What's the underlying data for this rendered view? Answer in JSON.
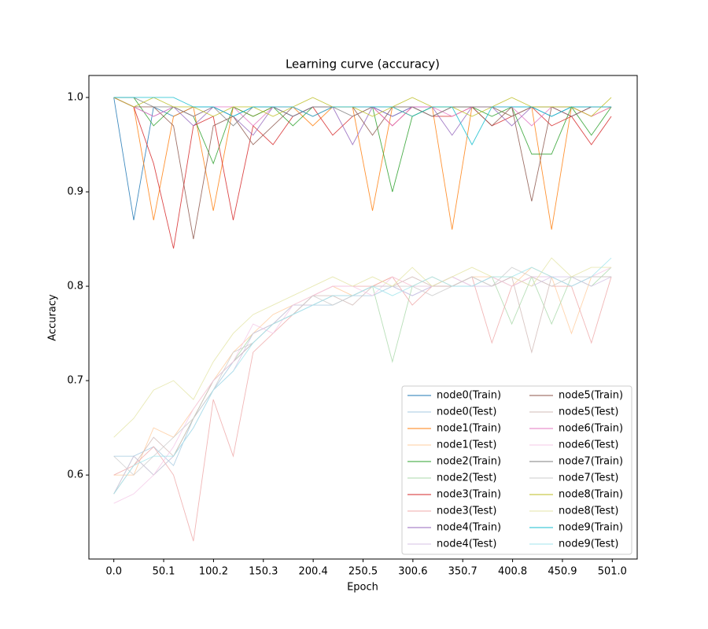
{
  "chart_data": {
    "type": "line",
    "title": "Learning curve (accuracy)",
    "x_label": "Epoch",
    "y_label": "Accuracy",
    "x": [
      0,
      20,
      40,
      60,
      80,
      100,
      120,
      140,
      160,
      180,
      200,
      220,
      240,
      260,
      280,
      300,
      320,
      340,
      360,
      380,
      400,
      420,
      440,
      460,
      480,
      500
    ],
    "xlim": [
      -25.05,
      526.05
    ],
    "ylim": [
      0.511,
      1.0233
    ],
    "xticks": [
      {
        "value": 0,
        "label": "0.0"
      },
      50.1,
      100.2,
      150.3,
      200.4,
      250.5,
      300.6,
      350.7,
      400.8,
      450.9,
      {
        "value": 501,
        "label": "501.0"
      }
    ],
    "yticks": [
      0.6,
      0.7,
      0.8,
      0.9,
      {
        "value": 1,
        "label": "1.0"
      }
    ],
    "legend_position": "lower right",
    "legend_columns": 2,
    "series": [
      {
        "name": "node0(Train)",
        "color": "#1f77b4",
        "values": [
          1.0,
          0.87,
          0.99,
          0.98,
          0.99,
          0.99,
          0.98,
          0.99,
          0.99,
          0.98,
          0.99,
          0.99,
          0.99,
          0.99,
          0.98,
          0.99,
          0.99,
          0.99,
          0.99,
          0.99,
          0.99,
          0.99,
          0.98,
          0.99,
          0.99,
          0.99
        ]
      },
      {
        "name": "node0(Test)",
        "color": "#a5c9e1",
        "values": [
          0.62,
          0.62,
          0.63,
          0.61,
          0.66,
          0.69,
          0.72,
          0.74,
          0.76,
          0.77,
          0.78,
          0.78,
          0.79,
          0.79,
          0.8,
          0.79,
          0.8,
          0.8,
          0.8,
          0.81,
          0.8,
          0.81,
          0.81,
          0.8,
          0.81,
          0.81
        ]
      },
      {
        "name": "node1(Train)",
        "color": "#ff7f0e",
        "values": [
          1.0,
          0.99,
          0.87,
          0.98,
          0.99,
          0.88,
          0.99,
          0.98,
          0.99,
          0.99,
          0.97,
          0.99,
          0.99,
          0.88,
          0.99,
          0.98,
          0.99,
          0.86,
          0.99,
          0.99,
          0.98,
          0.99,
          0.86,
          0.99,
          0.98,
          0.99
        ]
      },
      {
        "name": "node1(Test)",
        "color": "#ffcc9f",
        "values": [
          0.6,
          0.6,
          0.65,
          0.64,
          0.67,
          0.7,
          0.73,
          0.75,
          0.77,
          0.78,
          0.79,
          0.8,
          0.79,
          0.8,
          0.81,
          0.8,
          0.81,
          0.8,
          0.81,
          0.81,
          0.8,
          0.82,
          0.81,
          0.75,
          0.81,
          0.81
        ]
      },
      {
        "name": "node2(Train)",
        "color": "#2ca02c",
        "values": [
          1.0,
          1.0,
          0.97,
          0.99,
          0.98,
          0.93,
          0.99,
          0.98,
          0.99,
          0.97,
          0.99,
          0.99,
          0.99,
          0.99,
          0.9,
          0.98,
          0.99,
          0.99,
          0.99,
          0.98,
          0.99,
          0.94,
          0.94,
          0.99,
          0.96,
          0.99
        ]
      },
      {
        "name": "node2(Test)",
        "color": "#abd9ab",
        "values": [
          0.58,
          0.62,
          0.6,
          0.62,
          0.66,
          0.7,
          0.72,
          0.75,
          0.76,
          0.78,
          0.78,
          0.79,
          0.79,
          0.8,
          0.72,
          0.8,
          0.8,
          0.81,
          0.8,
          0.81,
          0.76,
          0.81,
          0.76,
          0.81,
          0.8,
          0.82
        ]
      },
      {
        "name": "node3(Train)",
        "color": "#d62728",
        "values": [
          1.0,
          0.99,
          0.93,
          0.84,
          0.97,
          0.98,
          0.87,
          0.97,
          0.95,
          0.98,
          0.99,
          0.96,
          0.98,
          0.99,
          0.97,
          0.99,
          0.98,
          0.98,
          0.99,
          0.97,
          0.98,
          0.99,
          0.97,
          0.98,
          0.95,
          0.98
        ]
      },
      {
        "name": "node3(Test)",
        "color": "#efa9a9",
        "values": [
          0.6,
          0.61,
          0.63,
          0.6,
          0.53,
          0.68,
          0.62,
          0.73,
          0.75,
          0.77,
          0.79,
          0.8,
          0.8,
          0.8,
          0.81,
          0.78,
          0.8,
          0.8,
          0.81,
          0.74,
          0.8,
          0.81,
          0.8,
          0.8,
          0.74,
          0.81
        ]
      },
      {
        "name": "node4(Train)",
        "color": "#9467bd",
        "values": [
          1.0,
          0.99,
          0.98,
          0.99,
          0.97,
          0.99,
          0.98,
          0.96,
          0.99,
          0.98,
          0.99,
          0.99,
          0.95,
          0.99,
          0.98,
          0.99,
          0.99,
          0.96,
          0.99,
          0.99,
          0.97,
          0.99,
          0.99,
          0.98,
          0.99,
          0.99
        ]
      },
      {
        "name": "node4(Test)",
        "color": "#d4c2e5",
        "values": [
          0.58,
          0.62,
          0.6,
          0.62,
          0.65,
          0.69,
          0.71,
          0.75,
          0.76,
          0.78,
          0.78,
          0.79,
          0.79,
          0.8,
          0.8,
          0.79,
          0.8,
          0.81,
          0.8,
          0.8,
          0.81,
          0.8,
          0.81,
          0.81,
          0.8,
          0.81
        ]
      },
      {
        "name": "node5(Train)",
        "color": "#8c564b",
        "values": [
          1.0,
          0.99,
          0.99,
          0.97,
          0.85,
          0.97,
          0.98,
          0.95,
          0.97,
          0.99,
          0.98,
          0.99,
          0.99,
          0.96,
          0.99,
          0.99,
          0.98,
          0.99,
          0.99,
          0.97,
          0.99,
          0.89,
          0.99,
          0.98,
          0.99,
          0.99
        ]
      },
      {
        "name": "node5(Test)",
        "color": "#d1bbb7",
        "values": [
          0.58,
          0.61,
          0.64,
          0.62,
          0.66,
          0.7,
          0.72,
          0.74,
          0.76,
          0.77,
          0.79,
          0.79,
          0.78,
          0.8,
          0.8,
          0.81,
          0.8,
          0.8,
          0.81,
          0.8,
          0.81,
          0.73,
          0.81,
          0.8,
          0.81,
          0.81
        ]
      },
      {
        "name": "node6(Train)",
        "color": "#e377c2",
        "values": [
          1.0,
          0.99,
          0.98,
          0.99,
          0.98,
          0.99,
          0.99,
          0.97,
          0.99,
          0.99,
          0.98,
          0.99,
          0.99,
          0.99,
          0.97,
          0.99,
          0.99,
          0.98,
          0.99,
          0.99,
          0.99,
          0.97,
          0.99,
          0.99,
          0.98,
          0.99
        ]
      },
      {
        "name": "node6(Test)",
        "color": "#f4c9e7",
        "values": [
          0.57,
          0.58,
          0.6,
          0.63,
          0.67,
          0.7,
          0.72,
          0.76,
          0.75,
          0.78,
          0.79,
          0.8,
          0.8,
          0.79,
          0.81,
          0.8,
          0.8,
          0.81,
          0.8,
          0.81,
          0.8,
          0.81,
          0.81,
          0.8,
          0.81,
          0.82
        ]
      },
      {
        "name": "node7(Train)",
        "color": "#7f7f7f",
        "values": [
          1.0,
          1.0,
          0.99,
          0.99,
          0.98,
          0.99,
          0.97,
          0.99,
          0.99,
          0.98,
          0.99,
          0.99,
          0.98,
          0.99,
          0.99,
          0.99,
          0.98,
          0.99,
          0.99,
          0.99,
          0.98,
          0.99,
          0.99,
          0.99,
          0.99,
          0.99
        ]
      },
      {
        "name": "node7(Test)",
        "color": "#cccccc",
        "values": [
          0.62,
          0.6,
          0.62,
          0.64,
          0.66,
          0.69,
          0.73,
          0.74,
          0.76,
          0.77,
          0.79,
          0.78,
          0.79,
          0.8,
          0.8,
          0.8,
          0.79,
          0.8,
          0.81,
          0.8,
          0.82,
          0.81,
          0.8,
          0.81,
          0.81,
          0.81
        ]
      },
      {
        "name": "node8(Train)",
        "color": "#bcbd22",
        "values": [
          1.0,
          0.99,
          1.0,
          0.99,
          0.99,
          0.98,
          0.99,
          0.99,
          0.98,
          0.99,
          1.0,
          0.99,
          0.99,
          0.98,
          0.99,
          1.0,
          0.99,
          0.99,
          0.98,
          0.99,
          1.0,
          0.99,
          0.99,
          0.99,
          0.98,
          1.0
        ]
      },
      {
        "name": "node8(Test)",
        "color": "#e4e5a7",
        "values": [
          0.64,
          0.66,
          0.69,
          0.7,
          0.68,
          0.72,
          0.75,
          0.77,
          0.78,
          0.79,
          0.8,
          0.81,
          0.8,
          0.81,
          0.8,
          0.82,
          0.8,
          0.81,
          0.82,
          0.81,
          0.81,
          0.8,
          0.83,
          0.81,
          0.82,
          0.82
        ]
      },
      {
        "name": "node9(Train)",
        "color": "#17becf",
        "values": [
          1.0,
          1.0,
          1.0,
          1.0,
          0.99,
          0.99,
          0.98,
          0.99,
          0.99,
          0.99,
          0.98,
          0.99,
          0.99,
          0.99,
          0.99,
          0.98,
          0.99,
          0.99,
          0.95,
          0.99,
          0.99,
          0.99,
          0.98,
          0.99,
          0.99,
          0.99
        ]
      },
      {
        "name": "node9(Test)",
        "color": "#a2e5ec",
        "values": [
          0.58,
          0.61,
          0.62,
          0.62,
          0.65,
          0.69,
          0.71,
          0.74,
          0.76,
          0.77,
          0.78,
          0.79,
          0.79,
          0.8,
          0.79,
          0.8,
          0.81,
          0.8,
          0.8,
          0.81,
          0.81,
          0.82,
          0.81,
          0.8,
          0.81,
          0.83
        ]
      }
    ]
  }
}
